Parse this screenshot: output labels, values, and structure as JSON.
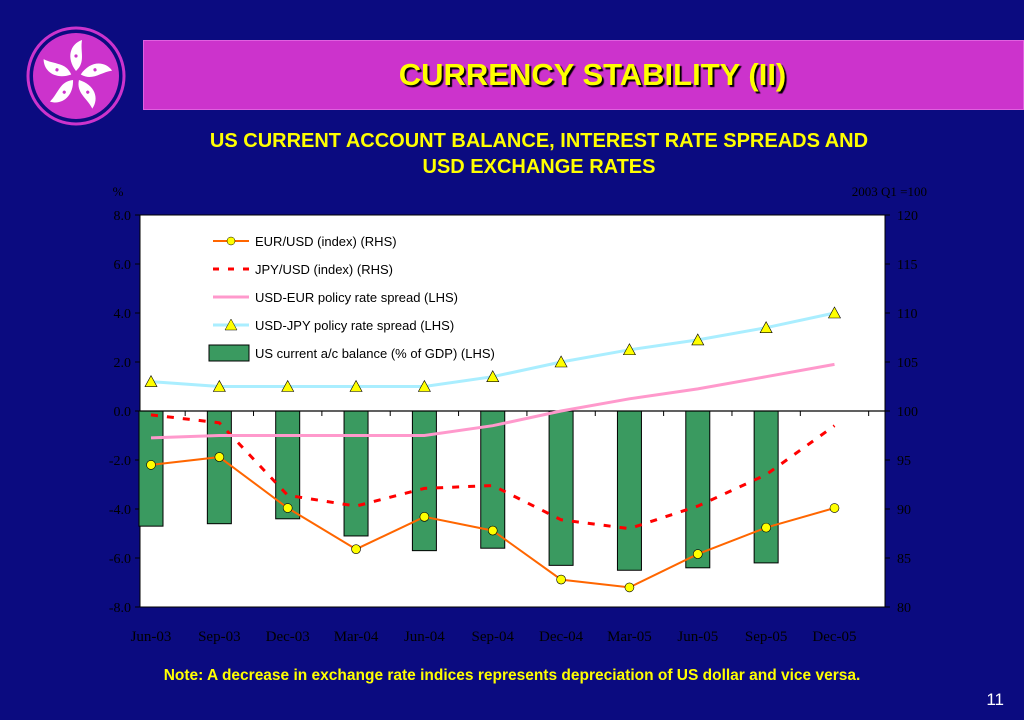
{
  "slide": {
    "title": "CURRENCY STABILITY  (II)",
    "subtitle_line1": "US CURRENT ACCOUNT BALANCE, INTEREST RATE SPREADS AND",
    "subtitle_line2": "USD EXCHANGE RATES",
    "note": "Note: A decrease in exchange rate indices represents depreciation of US dollar and vice versa.",
    "page_number": "11",
    "logo_icon": "bauhinia-flower-icon"
  },
  "colors": {
    "background": "#0b0b80",
    "title_bar": "#cc33cc",
    "title_text": "#ffff00",
    "plot_bg": "#ffffff",
    "bar": "#3a9a60",
    "eur": "#ff6600",
    "jpy": "#ff0000",
    "usd_eur_spread": "#ff99cc",
    "usd_jpy_spread": "#aaeeff"
  },
  "chart_data": {
    "type": "bar",
    "left_axis_unit": "%",
    "right_axis_unit": "2003 Q1 =100",
    "categories": [
      "Jun-03",
      "Sep-03",
      "Dec-03",
      "Mar-04",
      "Jun-04",
      "Sep-04",
      "Dec-04",
      "Mar-05",
      "Jun-05",
      "Sep-05",
      "Dec-05"
    ],
    "left_ylim": [
      -8,
      8
    ],
    "right_ylim": [
      80,
      120
    ],
    "left_ticks": [
      "8.0",
      "6.0",
      "4.0",
      "2.0",
      "0.0",
      "-2.0",
      "-4.0",
      "-6.0",
      "-8.0"
    ],
    "right_ticks": [
      "120",
      "115",
      "110",
      "105",
      "100",
      "95",
      "90",
      "85",
      "80"
    ],
    "legend_position": "top-left",
    "series": [
      {
        "name": "EUR/USD (index) (RHS)",
        "kind": "line-marker",
        "axis": "right",
        "values": [
          94.5,
          95.3,
          90.1,
          85.9,
          89.2,
          87.8,
          82.8,
          82.0,
          85.4,
          88.1,
          90.1
        ]
      },
      {
        "name": "JPY/USD (index) (RHS)",
        "kind": "dashed-line",
        "axis": "right",
        "values": [
          99.6,
          98.8,
          91.4,
          90.3,
          92.1,
          92.4,
          88.9,
          88.0,
          90.3,
          93.5,
          98.5
        ]
      },
      {
        "name": "USD-EUR policy rate spread (LHS)",
        "kind": "line",
        "axis": "left",
        "values": [
          -1.1,
          -1.0,
          -1.0,
          -1.0,
          -1.0,
          -0.6,
          0.0,
          0.5,
          0.9,
          1.4,
          1.9
        ]
      },
      {
        "name": "USD-JPY policy rate spread (LHS)",
        "kind": "line-triangle",
        "axis": "left",
        "values": [
          1.2,
          1.0,
          1.0,
          1.0,
          1.0,
          1.4,
          2.0,
          2.5,
          2.9,
          3.4,
          4.0
        ]
      },
      {
        "name": "US current a/c balance (% of GDP) (LHS)",
        "kind": "bar",
        "axis": "left",
        "values": [
          -4.7,
          -4.6,
          -4.4,
          -5.1,
          -5.7,
          -5.6,
          -6.3,
          -6.5,
          -6.4,
          -6.2,
          null
        ]
      }
    ]
  }
}
